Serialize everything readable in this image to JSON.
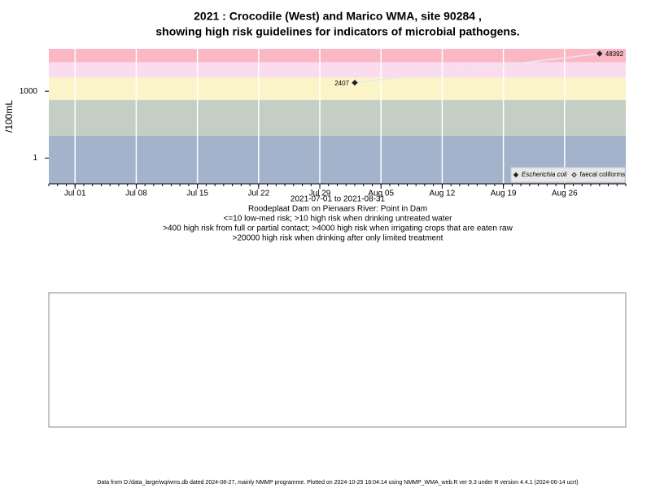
{
  "chart_data": {
    "type": "line",
    "title": [
      "2021 : Crocodile (West) and Marico WMA, site 90284 ,",
      "showing high risk guidelines for indicators of microbial pathogens."
    ],
    "y_label": "/100mL",
    "x_label": "2021-07-01 to 2021-08-31",
    "notes": [
      "Roodeplaat Dam on Pienaars River: Point in Dam",
      "<=10 low-med risk; >10 high risk when drinking untreated water",
      ">400 high risk from full or partial contact; >4000 high risk when irrigating crops that are eaten raw",
      ">20000 high risk when drinking after only limited treatment"
    ],
    "log_y": true,
    "x": [
      "2021-08-02",
      "2021-08-30"
    ],
    "series": [
      {
        "name": "Escherichia coli",
        "color": "#222222",
        "line_color": "#e8e8e8",
        "marker": "filled",
        "values": [
          2407,
          48392
        ]
      },
      {
        "name": "faecal coliforms",
        "color": "#222222",
        "marker": "open",
        "values": [
          null,
          null
        ]
      }
    ],
    "band_breaks": [
      10,
      400,
      4000,
      20000
    ],
    "band_colors": [
      "#a2b3cb",
      "#c4cec4",
      "#fbf4c8",
      "#fbdcee",
      "#fbb8c4"
    ],
    "xlim": [
      "2021-06-28",
      "2021-09-02"
    ],
    "ylim": [
      0.07,
      80000
    ],
    "xticks": [
      {
        "value": "2021-07-01",
        "label": "Jul 01"
      },
      {
        "value": "2021-07-08",
        "label": "Jul 08"
      },
      {
        "value": "2021-07-15",
        "label": "Jul 15"
      },
      {
        "value": "2021-07-22",
        "label": "Jul 22"
      },
      {
        "value": "2021-07-29",
        "label": "Jul 29"
      },
      {
        "value": "2021-08-05",
        "label": "Aug 05"
      },
      {
        "value": "2021-08-12",
        "label": "Aug 12"
      },
      {
        "value": "2021-08-19",
        "label": "Aug 19"
      },
      {
        "value": "2021-08-26",
        "label": "Aug 26"
      }
    ],
    "yticks": [
      1,
      1000
    ],
    "grid": true,
    "legend": "bottom-right",
    "footer": "Data from D:/data_large/wq/wms.db dated 2024-08-27, mainly NMMP programme. Plotted on 2024-10-25 18:04:14 using NMMP_WMA_web.R ver 9.3 under R version 4.4.1 (2024-06-14 ucrt)"
  }
}
